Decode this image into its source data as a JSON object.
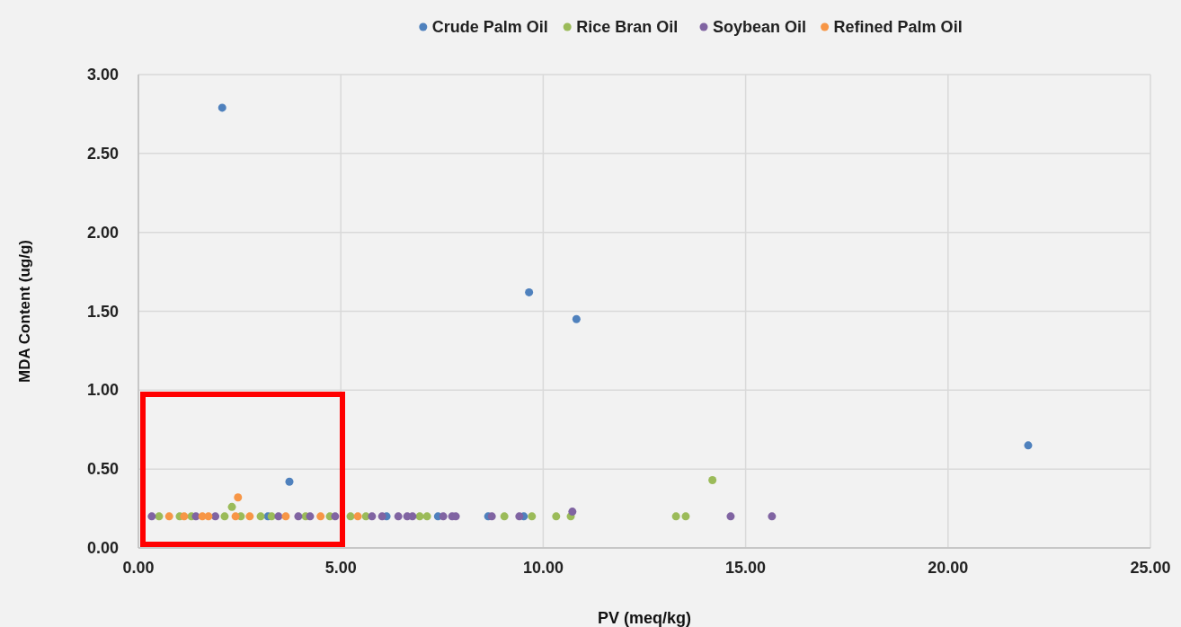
{
  "chart_data": {
    "type": "scatter",
    "xlabel": "PV (meq/kg)",
    "ylabel": "MDA Content (ug/g)",
    "xlim": [
      0,
      25
    ],
    "ylim": [
      0,
      3
    ],
    "xticks": [
      {
        "value": 0,
        "label": "0.00"
      },
      {
        "value": 5,
        "label": "5.00"
      },
      {
        "value": 10,
        "label": "10.00"
      },
      {
        "value": 15,
        "label": "15.00"
      },
      {
        "value": 20,
        "label": "20.00"
      },
      {
        "value": 25,
        "label": "25.00"
      }
    ],
    "yticks": [
      {
        "value": 0,
        "label": "0.00"
      },
      {
        "value": 0.5,
        "label": "0.50"
      },
      {
        "value": 1,
        "label": "1.00"
      },
      {
        "value": 1.5,
        "label": "1.50"
      },
      {
        "value": 2,
        "label": "2.00"
      },
      {
        "value": 2.5,
        "label": "2.50"
      },
      {
        "value": 3,
        "label": "3.00"
      }
    ],
    "grid": true,
    "legend": "top",
    "marker": "circle",
    "series": [
      {
        "name": "Crude Palm Oil",
        "color": "#4f81bd",
        "x": [
          2.07,
          9.65,
          10.82,
          21.98,
          3.73,
          3.2,
          6.13,
          7.4,
          8.64,
          9.52
        ],
        "values": [
          2.79,
          1.62,
          1.45,
          0.65,
          0.42,
          0.2,
          0.2,
          0.2,
          0.2,
          0.2
        ]
      },
      {
        "name": "Rice Bran Oil",
        "color": "#9bbb59",
        "x": [
          2.31,
          14.18,
          0.51,
          1.02,
          1.31,
          2.13,
          2.53,
          3.02,
          3.29,
          4.13,
          4.73,
          5.24,
          5.62,
          6.95,
          7.13,
          9.04,
          9.72,
          10.32,
          10.68,
          13.28,
          13.52
        ],
        "values": [
          0.26,
          0.43,
          0.2,
          0.2,
          0.2,
          0.2,
          0.2,
          0.2,
          0.2,
          0.2,
          0.2,
          0.2,
          0.2,
          0.2,
          0.2,
          0.2,
          0.2,
          0.2,
          0.2,
          0.2,
          0.2
        ]
      },
      {
        "name": "Soybean Oil",
        "color": "#8064a2",
        "x": [
          0.33,
          1.42,
          1.9,
          3.46,
          3.95,
          4.24,
          4.86,
          5.77,
          6.02,
          6.42,
          6.64,
          6.77,
          7.53,
          7.75,
          7.84,
          8.73,
          9.41,
          10.72,
          14.63,
          15.65
        ],
        "values": [
          0.2,
          0.2,
          0.2,
          0.2,
          0.2,
          0.2,
          0.2,
          0.2,
          0.2,
          0.2,
          0.2,
          0.2,
          0.2,
          0.2,
          0.2,
          0.2,
          0.2,
          0.23,
          0.2,
          0.2
        ]
      },
      {
        "name": "Refined Palm Oil",
        "color": "#f79646",
        "x": [
          2.46,
          0.76,
          1.13,
          1.58,
          1.73,
          2.4,
          2.75,
          3.64,
          4.5,
          5.42
        ],
        "values": [
          0.32,
          0.2,
          0.2,
          0.2,
          0.2,
          0.2,
          0.2,
          0.2,
          0.2,
          0.2
        ]
      }
    ]
  }
}
